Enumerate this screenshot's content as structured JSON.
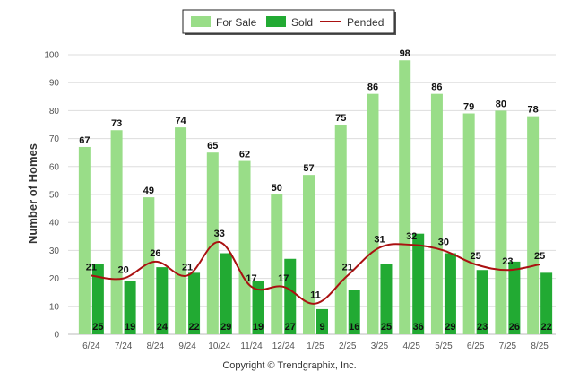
{
  "credit": "Copyright © Trendgraphix, Inc.",
  "chart_data": {
    "type": "bar",
    "categories": [
      "6/24",
      "7/24",
      "8/24",
      "9/24",
      "10/24",
      "11/24",
      "12/24",
      "1/25",
      "2/25",
      "3/25",
      "4/25",
      "5/25",
      "6/25",
      "7/25",
      "8/25"
    ],
    "series": [
      {
        "name": "For Sale",
        "type": "bar",
        "color": "#99dd88",
        "values": [
          67,
          73,
          49,
          74,
          65,
          62,
          50,
          57,
          75,
          86,
          98,
          86,
          79,
          80,
          78
        ]
      },
      {
        "name": "Sold",
        "type": "bar",
        "color": "#22aa33",
        "values": [
          25,
          19,
          24,
          22,
          29,
          19,
          27,
          9,
          16,
          25,
          36,
          29,
          23,
          26,
          22
        ]
      },
      {
        "name": "Pended",
        "type": "line",
        "color": "#aa1111",
        "values": [
          21,
          20,
          26,
          21,
          33,
          17,
          17,
          11,
          21,
          31,
          32,
          30,
          25,
          23,
          25
        ]
      }
    ],
    "ylabel": "Number of Homes",
    "ylim": [
      0,
      100
    ],
    "yticks": [
      0,
      10,
      20,
      30,
      40,
      50,
      60,
      70,
      80,
      90,
      100
    ],
    "grid": true,
    "legend_position": "top-center"
  }
}
